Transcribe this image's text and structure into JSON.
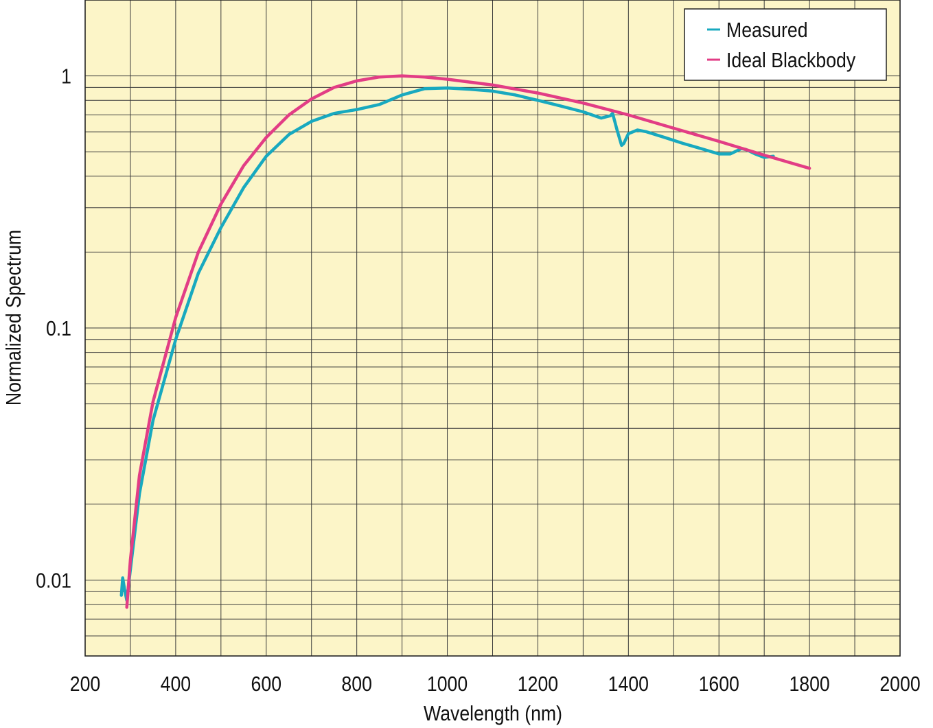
{
  "chart_data": {
    "type": "line",
    "xlabel": "Wavelength (nm)",
    "ylabel": "Normalized Spectrum",
    "xlim": [
      200,
      2000
    ],
    "ylim": [
      0.005,
      2
    ],
    "yscale": "log",
    "x_ticks": [
      "200",
      "400",
      "600",
      "800",
      "1000",
      "1200",
      "1400",
      "1600",
      "1800",
      "2000"
    ],
    "y_ticks": [
      {
        "value": 0.01,
        "label": "0.01"
      },
      {
        "value": 0.1,
        "label": "0.1"
      },
      {
        "value": 1,
        "label": "1"
      }
    ],
    "grid": true,
    "background_color": "#fcf5c8",
    "legend_position": "top-right",
    "series": [
      {
        "name": "Measured",
        "color": "#18a9bf",
        "x": [
          280,
          283,
          287,
          292,
          300,
          320,
          350,
          400,
          450,
          500,
          550,
          600,
          650,
          700,
          750,
          800,
          850,
          900,
          950,
          1000,
          1050,
          1100,
          1150,
          1200,
          1250,
          1300,
          1340,
          1360,
          1365,
          1375,
          1385,
          1390,
          1400,
          1420,
          1440,
          1480,
          1520,
          1560,
          1600,
          1625,
          1640,
          1650,
          1660,
          1680,
          1700,
          1720
        ],
        "y": [
          0.0087,
          0.0102,
          0.0092,
          0.0083,
          0.011,
          0.022,
          0.043,
          0.09,
          0.165,
          0.25,
          0.36,
          0.48,
          0.585,
          0.66,
          0.71,
          0.735,
          0.77,
          0.84,
          0.89,
          0.895,
          0.885,
          0.87,
          0.84,
          0.8,
          0.76,
          0.72,
          0.68,
          0.695,
          0.71,
          0.61,
          0.53,
          0.54,
          0.59,
          0.61,
          0.6,
          0.57,
          0.54,
          0.515,
          0.49,
          0.49,
          0.505,
          0.515,
          0.51,
          0.49,
          0.475,
          0.48
        ]
      },
      {
        "name": "Ideal Blackbody",
        "color": "#e23d85",
        "x": [
          292,
          300,
          320,
          350,
          400,
          450,
          500,
          550,
          600,
          650,
          700,
          750,
          800,
          850,
          900,
          950,
          1000,
          1100,
          1200,
          1300,
          1400,
          1500,
          1600,
          1700,
          1800
        ],
        "y": [
          0.0078,
          0.012,
          0.026,
          0.051,
          0.11,
          0.2,
          0.31,
          0.44,
          0.57,
          0.7,
          0.81,
          0.9,
          0.955,
          0.99,
          1.0,
          0.99,
          0.97,
          0.92,
          0.855,
          0.78,
          0.7,
          0.62,
          0.55,
          0.485,
          0.43
        ]
      }
    ]
  }
}
